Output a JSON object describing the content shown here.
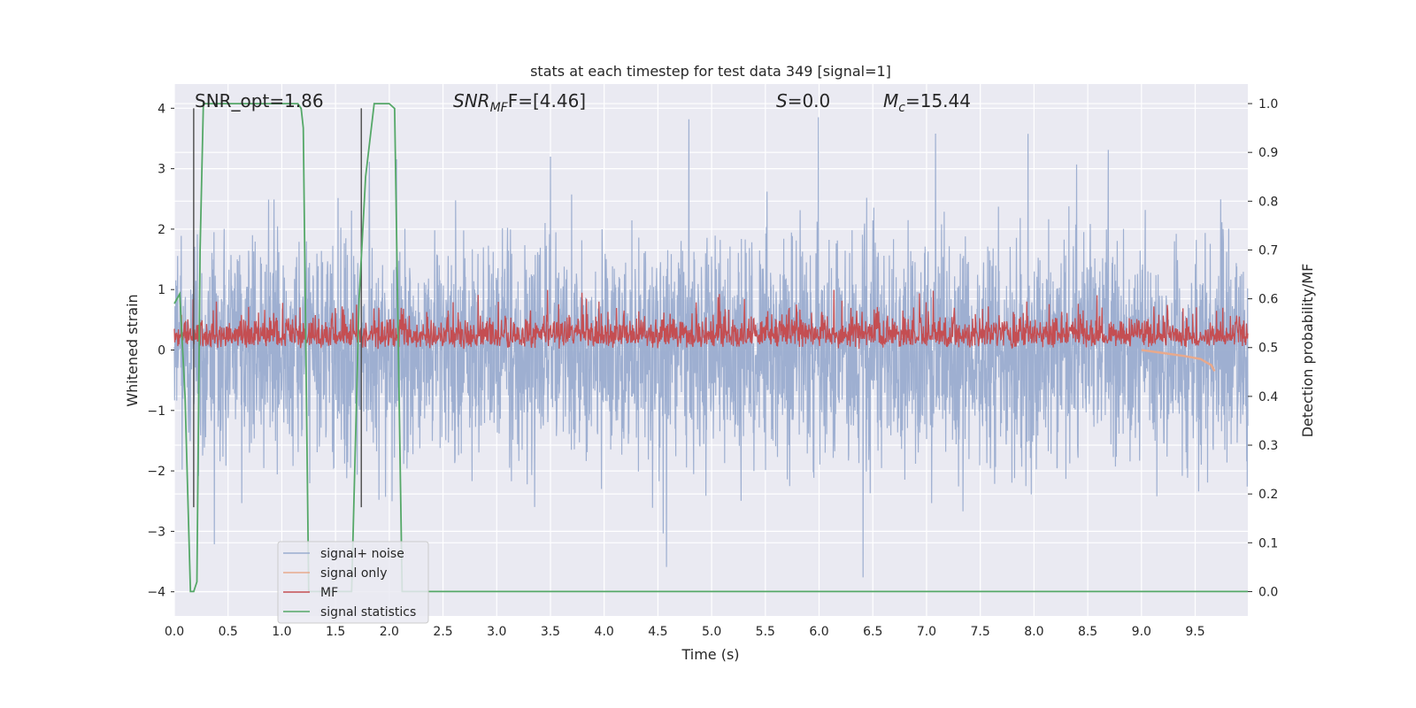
{
  "chart_data": {
    "type": "line",
    "title": "stats at each timestep for test data 349 [signal=1]",
    "xlabel": "Time (s)",
    "ylabel": "Whitened strain",
    "ylabel_right": "Detection probability/MF",
    "xlim": [
      0.0,
      9.99
    ],
    "ylim": [
      -4.4,
      4.4
    ],
    "ylim_right": [
      -0.05,
      1.04
    ],
    "x_ticks": [
      "0.0",
      "0.5",
      "1.0",
      "1.5",
      "2.0",
      "2.5",
      "3.0",
      "3.5",
      "4.0",
      "4.5",
      "5.0",
      "5.5",
      "6.0",
      "6.5",
      "7.0",
      "7.5",
      "8.0",
      "8.5",
      "9.0",
      "9.5"
    ],
    "y_ticks": [
      "−4",
      "−3",
      "−2",
      "−1",
      "0",
      "1",
      "2",
      "3",
      "4"
    ],
    "y_ticks_right": [
      "0.0",
      "0.1",
      "0.2",
      "0.3",
      "0.4",
      "0.5",
      "0.6",
      "0.7",
      "0.8",
      "0.9",
      "1.0"
    ],
    "grid": true,
    "background": "#eaeaf2",
    "annotations": {
      "snr_opt": "SNR_opt=1.86",
      "snr_mf_sym": "SNR",
      "snr_mf_sub": "MF",
      "snr_mf_val": "F=[4.46]",
      "s_sym": "S",
      "s_val": "=0.0",
      "mc_sym": "M",
      "mc_sub": "c",
      "mc_val": "=15.44"
    },
    "vertical_markers": [
      0.18,
      1.74
    ],
    "legend_position": "lower-left",
    "series": [
      {
        "name": "signal+ noise",
        "color": "#9aaccf",
        "axis": "left",
        "description_values": {
          "min": -4.05,
          "max": 4.0,
          "typical_envelope": [
            -2.0,
            2.3
          ]
        }
      },
      {
        "name": "signal only",
        "color": "#e8a98c",
        "axis": "left",
        "x": [
          9.0,
          9.2,
          9.4,
          9.55,
          9.6,
          9.65,
          9.68
        ],
        "values": [
          0.0,
          -0.05,
          -0.1,
          -0.15,
          -0.2,
          -0.25,
          -0.35
        ]
      },
      {
        "name": "MF",
        "color": "#c44e52",
        "axis": "right",
        "description_values": {
          "baseline": 0.5,
          "typical_max": 0.58,
          "peak": 0.62
        }
      },
      {
        "name": "signal statistics",
        "color": "#55a868",
        "axis": "right",
        "x": [
          0.0,
          0.05,
          0.1,
          0.15,
          0.18,
          0.21,
          0.24,
          0.27,
          0.32,
          1.15,
          1.18,
          1.2,
          1.25,
          1.3,
          1.65,
          1.72,
          1.78,
          1.86,
          2.0,
          2.05,
          2.12,
          9.99
        ],
        "values": [
          0.59,
          0.61,
          0.4,
          0.0,
          0.0,
          0.02,
          0.7,
          1.0,
          1.0,
          1.0,
          0.99,
          0.95,
          0.0,
          0.0,
          0.0,
          0.6,
          0.85,
          1.0,
          1.0,
          0.99,
          0.0,
          0.0
        ]
      }
    ]
  }
}
